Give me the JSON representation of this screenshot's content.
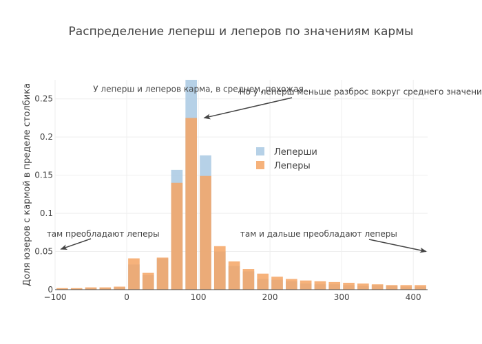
{
  "chart_data": {
    "type": "bar",
    "title": "Распределение леперш и леперов по значениям кармы",
    "xlabel": "",
    "ylabel": "Доля юзеров с кармой в пределе столбика",
    "xlim": [
      -100,
      420
    ],
    "ylim": [
      0,
      0.275
    ],
    "x_ticks": [
      -100,
      0,
      100,
      200,
      300,
      400
    ],
    "x_tick_labels": [
      "−100",
      "0",
      "100",
      "200",
      "300",
      "400"
    ],
    "y_ticks": [
      0,
      0.05,
      0.1,
      0.15,
      0.2,
      0.25
    ],
    "y_tick_labels": [
      "0",
      "0.05",
      "0.1",
      "0.15",
      "0.2",
      "0.25"
    ],
    "bar_width": 16,
    "x": [
      -90,
      -70,
      -50,
      -30,
      -10,
      10,
      30,
      50,
      70,
      90,
      110,
      130,
      150,
      170,
      190,
      210,
      230,
      250,
      270,
      290,
      310,
      330,
      350,
      370,
      390,
      410
    ],
    "series": [
      {
        "name": "Леперши",
        "color": "#a9c9e3",
        "values": [
          0.001,
          0.001,
          0.002,
          0.002,
          0.003,
          0.033,
          0.019,
          0.041,
          0.157,
          0.275,
          0.176,
          0.05,
          0.031,
          0.024,
          0.014,
          0.013,
          0.011,
          0.008,
          0.007,
          0.007,
          0.006,
          0.005,
          0.006,
          0.005,
          0.004,
          0.004
        ]
      },
      {
        "name": "Леперы",
        "color": "#f4a464",
        "values": [
          0.002,
          0.002,
          0.003,
          0.003,
          0.004,
          0.041,
          0.022,
          0.042,
          0.14,
          0.225,
          0.149,
          0.057,
          0.037,
          0.027,
          0.021,
          0.017,
          0.014,
          0.012,
          0.011,
          0.01,
          0.009,
          0.008,
          0.007,
          0.006,
          0.006,
          0.006
        ]
      }
    ],
    "grid": true,
    "legend_position": "center-right",
    "annotations": [
      {
        "text": "У леперш и леперов карма, в среднем, похожая",
        "x": 100,
        "y": 0.263
      },
      {
        "text": "Но у леперш меньше разброс вокруг среднего значения",
        "x": 330,
        "y": 0.259,
        "arrow_to": [
          108,
          0.225
        ]
      },
      {
        "text": "там преобладают леперы",
        "x": -33,
        "y": 0.073,
        "arrow_to": [
          -92,
          0.053
        ]
      },
      {
        "text": "там и дальше преобладают леперы",
        "x": 268,
        "y": 0.073,
        "arrow_to": [
          418,
          0.05
        ]
      }
    ]
  }
}
